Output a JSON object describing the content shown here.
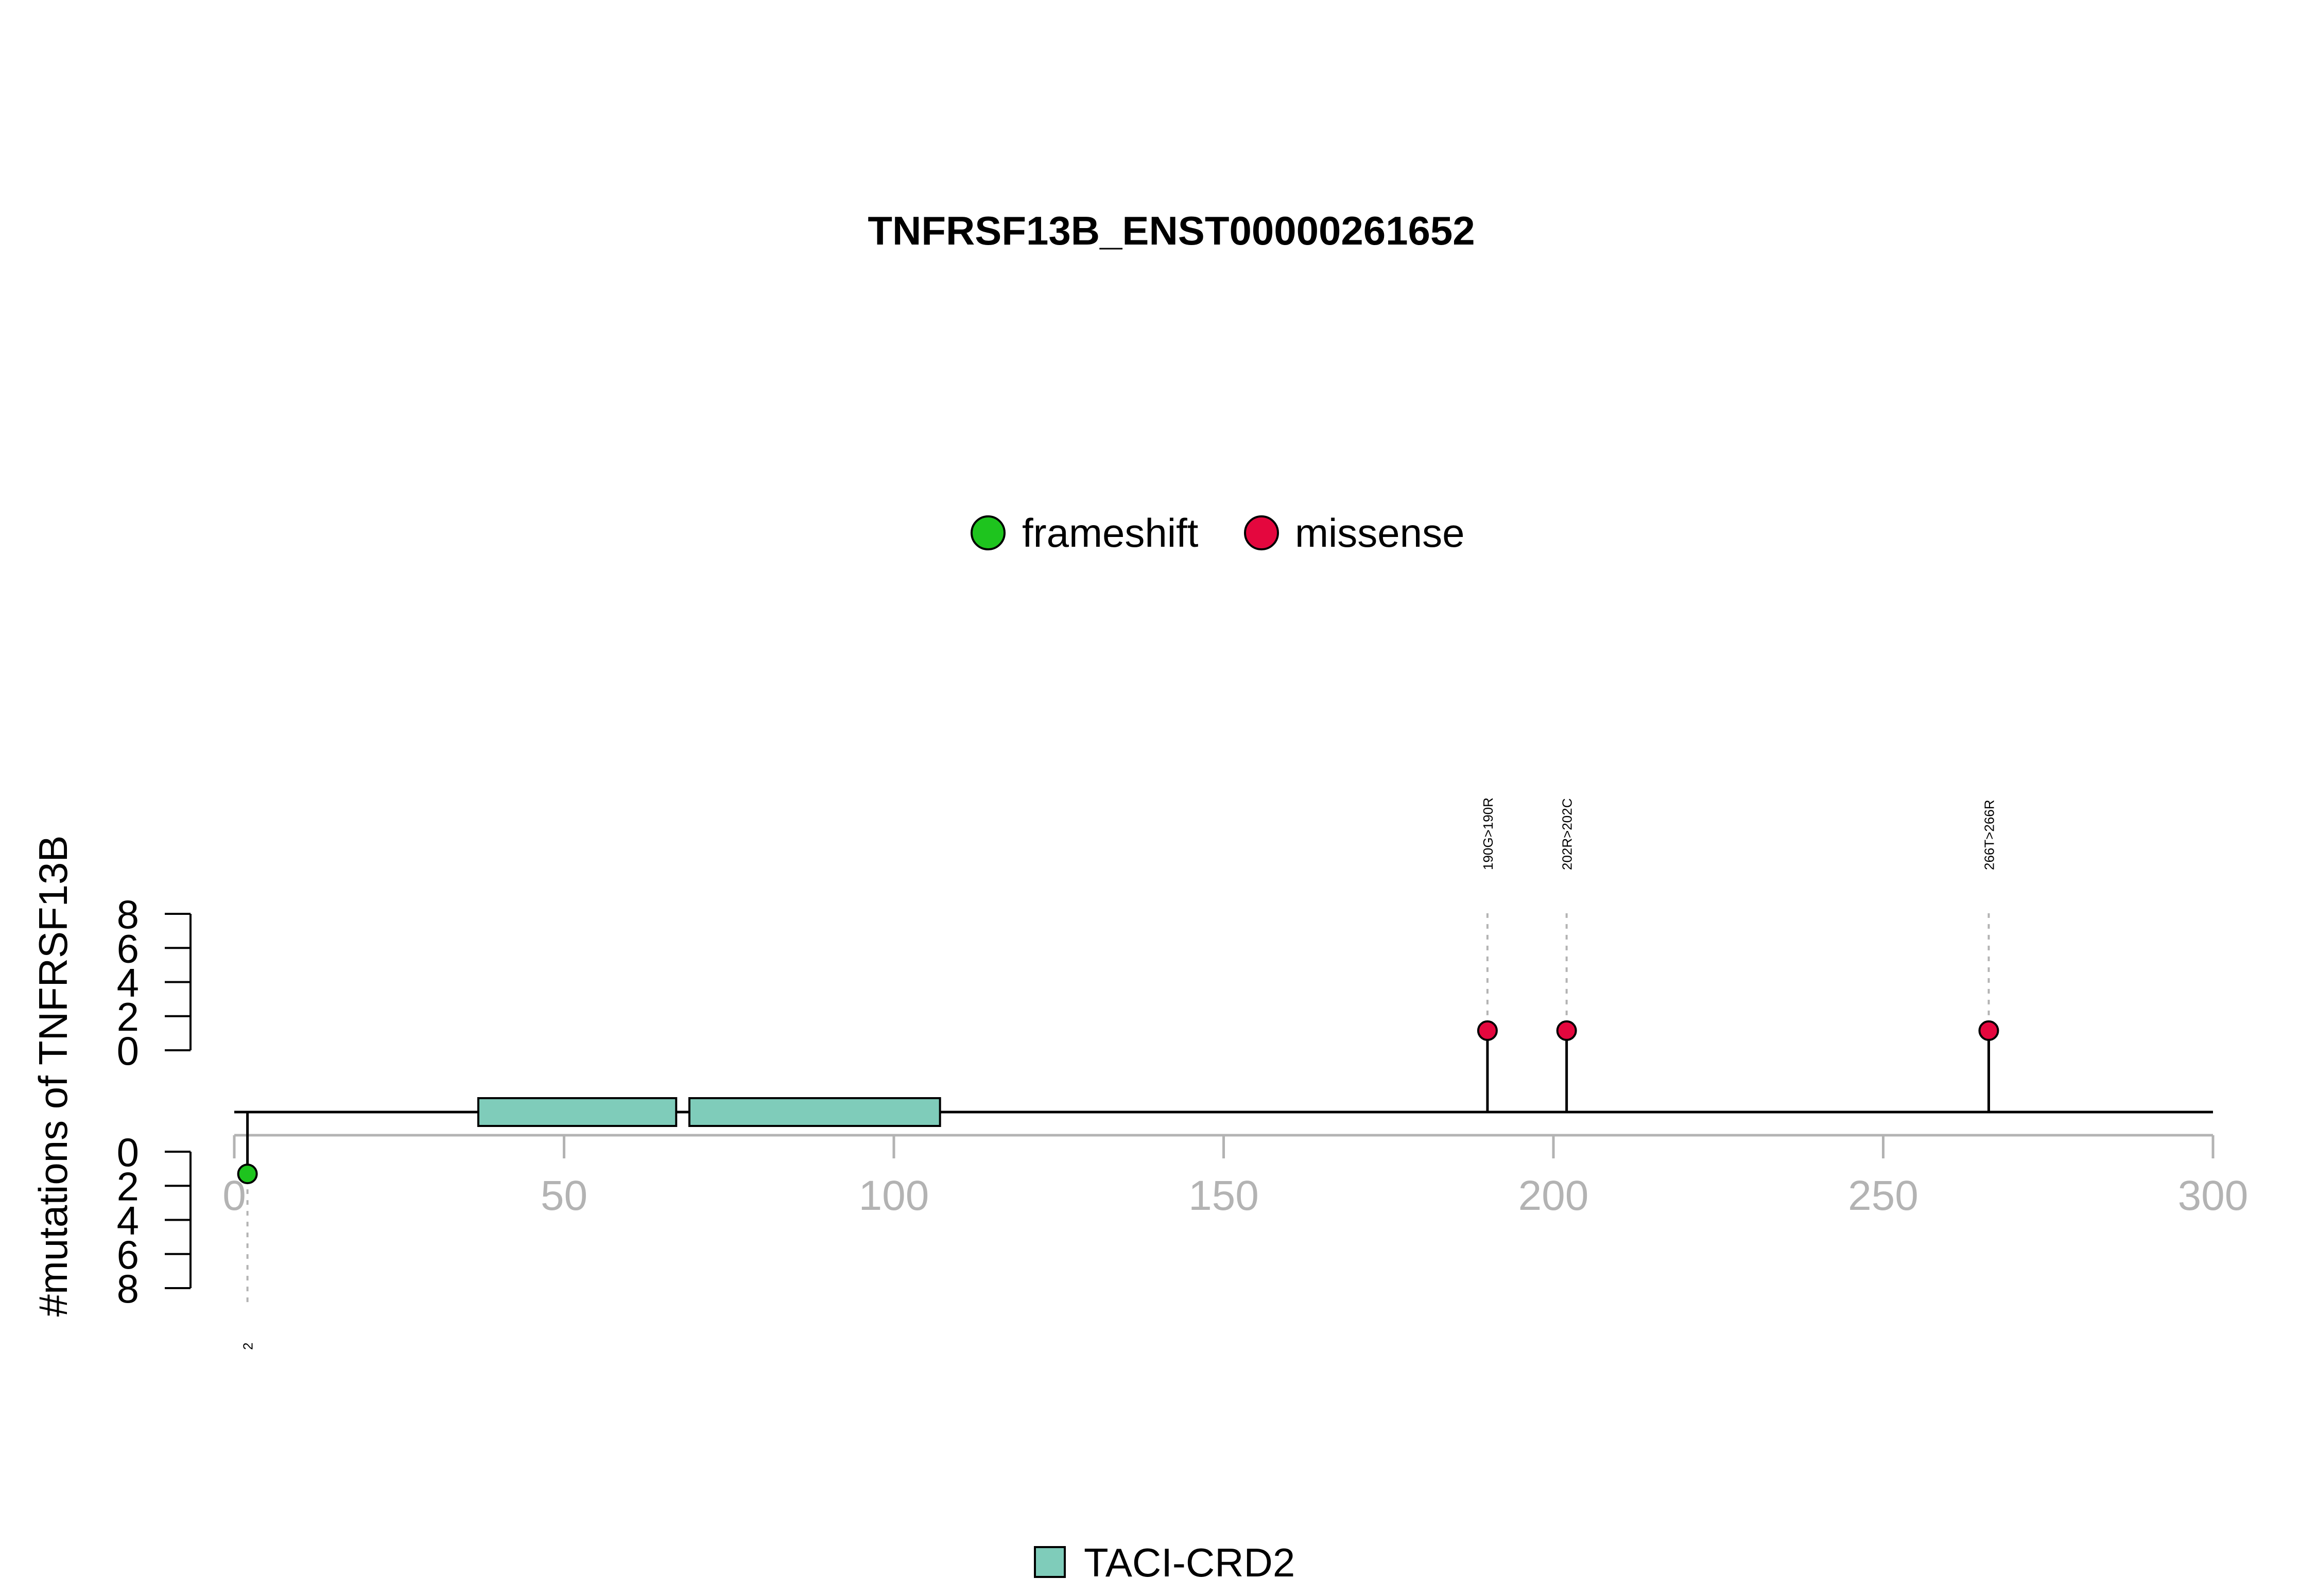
{
  "chart_data": {
    "type": "lollipop",
    "title": "TNFRSF13B_ENST00000261652",
    "ylabel": "#mutations of TNFRSF13B",
    "xlim": [
      0,
      300
    ],
    "x_ticks": [
      0,
      50,
      100,
      150,
      200,
      250,
      300
    ],
    "y_ticks_upper": [
      0,
      2,
      4,
      6,
      8
    ],
    "y_ticks_lower": [
      0,
      2,
      4,
      6,
      8
    ],
    "legend_top": [
      {
        "name": "frameshift",
        "color": "#1ec41e"
      },
      {
        "name": "missense",
        "color": "#e4073e"
      }
    ],
    "legend_bottom": [
      {
        "name": "TACI-CRD2",
        "color": "#7fccba"
      }
    ],
    "domains": [
      {
        "name": "TACI-CRD2",
        "start": 37,
        "end": 67
      },
      {
        "name": "TACI-CRD2",
        "start": 69,
        "end": 107
      }
    ],
    "mutations": [
      {
        "position": 2,
        "count": 1,
        "type": "frameshift",
        "side": "bottom",
        "label": "2"
      },
      {
        "position": 190,
        "count": 1,
        "type": "missense",
        "side": "top",
        "label": "190G>190R"
      },
      {
        "position": 202,
        "count": 1,
        "type": "missense",
        "side": "top",
        "label": "202R>202C"
      },
      {
        "position": 266,
        "count": 1,
        "type": "missense",
        "side": "top",
        "label": "266T>266R"
      }
    ]
  }
}
